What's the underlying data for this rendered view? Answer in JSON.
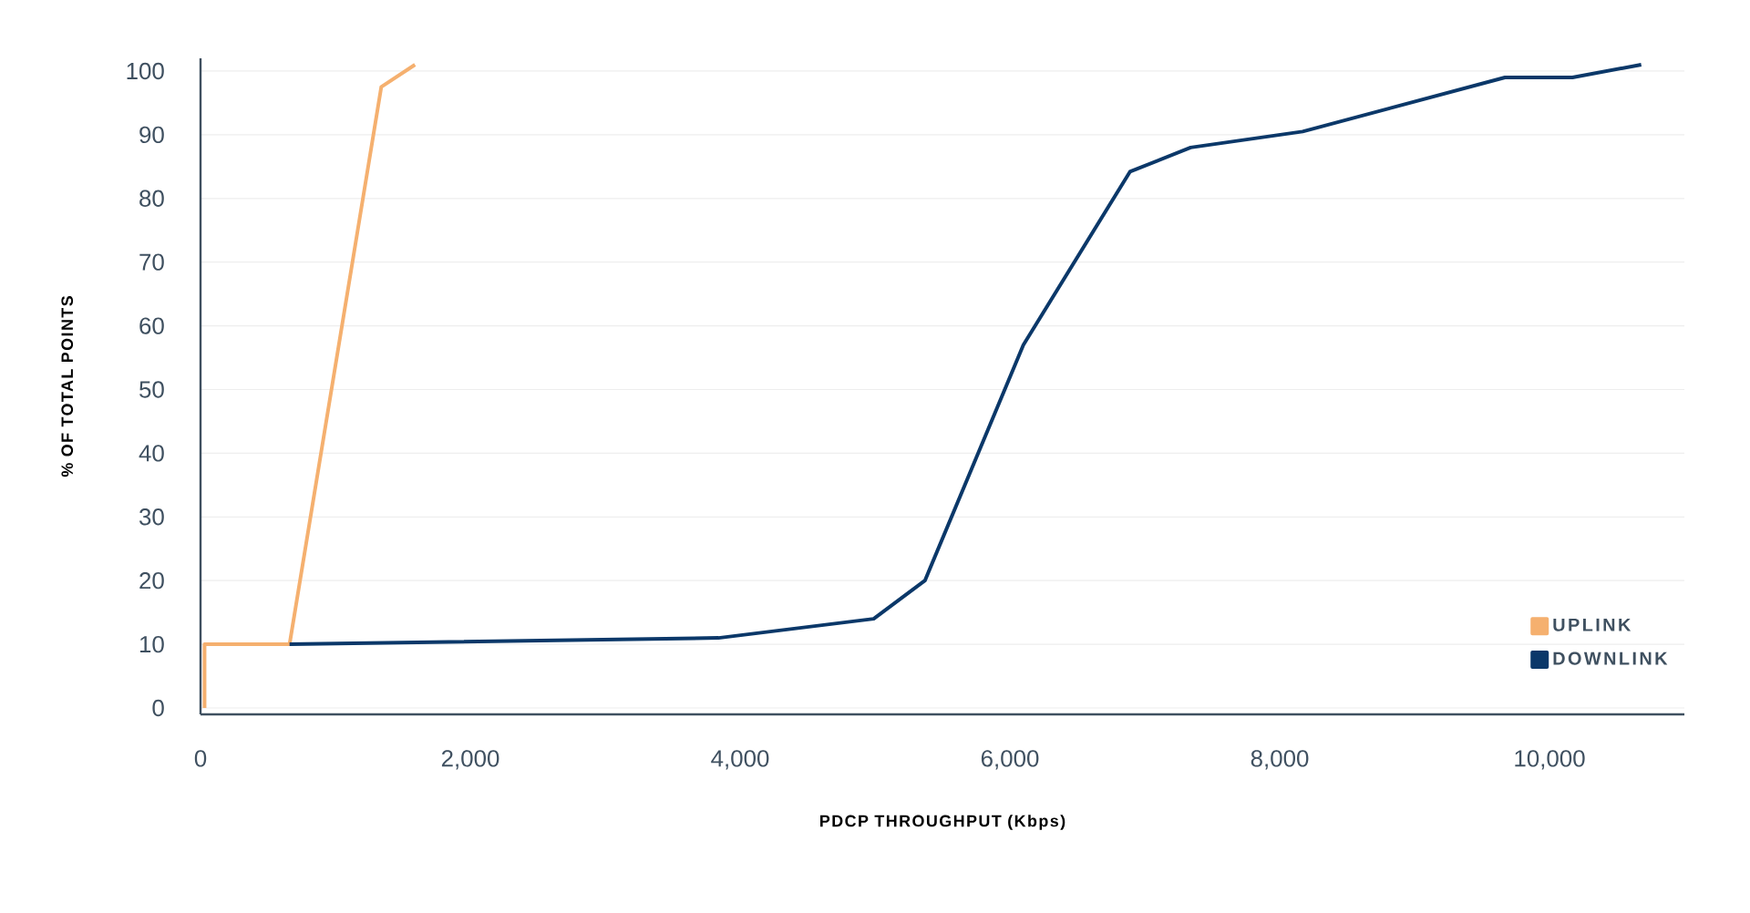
{
  "chart_data": {
    "type": "line",
    "xlabel": "PDCP THROUGHPUT (Kbps)",
    "ylabel": "% OF TOTAL POINTS",
    "series": [
      {
        "name": "UPLINK",
        "color": "#f5b06f",
        "x": [
          30,
          30,
          660,
          1340,
          1590
        ],
        "values": [
          0,
          10,
          10,
          97.5,
          101
        ]
      },
      {
        "name": "DOWNLINK",
        "color": "#0b3869",
        "x": [
          660,
          3840,
          4990,
          5370,
          6100,
          6890,
          7340,
          8170,
          9670,
          10170,
          10680
        ],
        "values": [
          10,
          11,
          14,
          20,
          57,
          84.2,
          88,
          90.5,
          99,
          99,
          101
        ]
      }
    ],
    "xlim": [
      0,
      11000
    ],
    "xticks": [
      0,
      {
        "value": 2000,
        "label": "2,000"
      },
      {
        "value": 4000,
        "label": "4,000"
      },
      {
        "value": 6000,
        "label": "6,000"
      },
      {
        "value": 8000,
        "label": "8,000"
      },
      {
        "value": 10000,
        "label": "10,000"
      }
    ],
    "ylim": [
      -1,
      102
    ],
    "yticks": [
      0,
      10,
      20,
      30,
      40,
      50,
      60,
      70,
      80,
      90,
      100
    ],
    "grid": "y",
    "legend": "bottom right",
    "marker": "none",
    "line_style": "solid"
  }
}
